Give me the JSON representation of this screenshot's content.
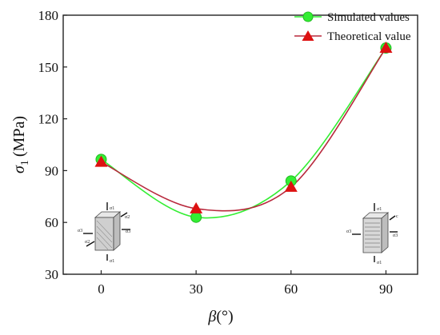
{
  "chart_data": {
    "type": "line",
    "xlabel_symbol": "β",
    "xlabel_unit": "(°)",
    "ylabel_symbol": "σ",
    "ylabel_sub": "1",
    "ylabel_unit": "(MPa)",
    "x_ticks": [
      0,
      30,
      60,
      90
    ],
    "y_ticks": [
      30,
      60,
      90,
      120,
      150,
      180
    ],
    "xlim": [
      -12,
      100
    ],
    "ylim": [
      30,
      180
    ],
    "legend_position": "top-right",
    "series": [
      {
        "name": "Simulated values",
        "marker": "circle",
        "color": "#33ee33",
        "x": [
          0,
          30,
          60,
          90
        ],
        "values": [
          96.5,
          63,
          84,
          161
        ]
      },
      {
        "name": "Theoretical value",
        "marker": "triangle",
        "color": "#dd1111",
        "line_color": "#b8283c",
        "x": [
          0,
          30,
          60,
          90
        ],
        "values": [
          95,
          68,
          80.5,
          161
        ]
      }
    ],
    "insets": {
      "left": {
        "labels": [
          "σ1",
          "σ2",
          "σ3",
          "σ2",
          "σ3",
          "σ1"
        ]
      },
      "right": {
        "labels": [
          "σ1",
          "c",
          "σ3",
          "σ3",
          "σ1"
        ]
      }
    }
  }
}
